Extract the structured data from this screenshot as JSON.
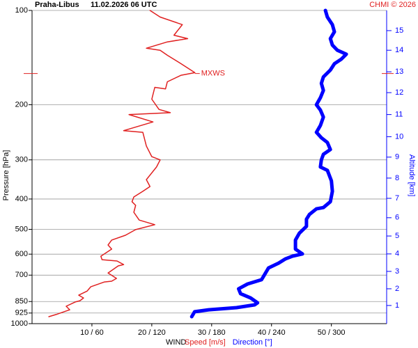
{
  "chart_data": {
    "type": "profile",
    "title": "Praha-Libus",
    "subtitle": "11.02.2026 06 UTC",
    "credit": "CHMI © 2026",
    "y_label": "Pressure [hPa]",
    "y2_label": "Altitude [km]",
    "x_label": "WIND",
    "log_y": true,
    "grid": true,
    "ylim": [
      1000,
      100
    ],
    "yticks": [
      100,
      200,
      300,
      400,
      500,
      600,
      700,
      850,
      925,
      1000
    ],
    "xlim": [
      0,
      59
    ],
    "x2lim": [
      0,
      354
    ],
    "xticks": [
      {
        "value": 10,
        "label": "10 / 60"
      },
      {
        "value": 20,
        "label": "20 / 120"
      },
      {
        "value": 30,
        "label": "30 / 180"
      },
      {
        "value": 40,
        "label": "40 / 240"
      },
      {
        "value": 50,
        "label": "50 / 300"
      }
    ],
    "y2ticks": [
      1,
      2,
      3,
      4,
      5,
      6,
      7,
      8,
      9,
      10,
      11,
      12,
      13,
      14,
      15
    ],
    "y2tick_pressures": [
      875,
      774,
      681,
      599,
      525,
      459,
      398,
      343,
      294,
      253,
      215,
      183,
      157,
      134,
      116
    ],
    "y2_color": "#0000ff",
    "annotation": {
      "text": "MXWS",
      "pressure": 159,
      "color": "#e02020"
    },
    "series": [
      {
        "name": "Speed [m/s]",
        "color": "#e02020",
        "width": 1.5,
        "pressure": [
          950,
          935,
          903,
          880,
          853,
          845,
          828,
          811,
          787,
          763,
          736,
          732,
          717,
          689,
          654,
          648,
          631,
          625,
          609,
          578,
          561,
          541,
          522,
          501,
          483,
          467,
          441,
          419,
          408,
          394,
          378,
          365,
          347,
          316,
          300,
          293,
          271,
          245,
          242,
          227,
          215,
          212,
          207,
          192,
          176,
          178,
          169,
          161,
          158,
          148,
          139,
          134,
          132,
          126,
          123,
          120,
          111,
          105,
          100
        ],
        "values": [
          2.8,
          4.0,
          6.3,
          5.7,
          7.2,
          8.0,
          8.6,
          7.8,
          9.2,
          9.8,
          12.1,
          13.3,
          14.1,
          12.7,
          14.4,
          15.3,
          14.2,
          11.7,
          11.5,
          13.3,
          12.7,
          13.3,
          15.6,
          17.3,
          20.5,
          17.9,
          17.0,
          17.3,
          16.7,
          17.0,
          18.5,
          19.7,
          19.1,
          20.8,
          21.4,
          20.0,
          19.1,
          18.5,
          15.3,
          20.2,
          16.2,
          23.1,
          21.2,
          20.0,
          20.5,
          22.3,
          22.6,
          24.9,
          27.2,
          24.9,
          22.6,
          21.4,
          19.1,
          22.6,
          26.0,
          23.7,
          25.1,
          21.4,
          19.7
        ]
      },
      {
        "name": "Direction [°]",
        "color": "#0000ff",
        "width": 5,
        "axis": "x2",
        "pressure": [
          950,
          916,
          903,
          889,
          871,
          858,
          828,
          802,
          774,
          747,
          724,
          698,
          664,
          641,
          621,
          609,
          599,
          578,
          541,
          514,
          489,
          464,
          448,
          430,
          426,
          408,
          378,
          350,
          324,
          316,
          300,
          288,
          278,
          264,
          255,
          245,
          233,
          219,
          208,
          200,
          190,
          180,
          171,
          163,
          155,
          148,
          143,
          138,
          134,
          129,
          123,
          117,
          111,
          105,
          100
        ],
        "values": [
          160,
          163,
          177,
          205,
          223,
          226,
          219,
          209,
          207,
          216,
          230,
          233,
          237,
          247,
          254,
          261,
          271,
          264,
          264,
          268,
          275,
          275,
          278,
          285,
          292,
          299,
          301,
          300,
          296,
          289,
          290,
          292,
          299,
          296,
          290,
          285,
          289,
          292,
          289,
          285,
          289,
          292,
          290,
          292,
          299,
          303,
          310,
          315,
          306,
          301,
          299,
          303,
          301,
          296,
          294
        ]
      }
    ]
  }
}
